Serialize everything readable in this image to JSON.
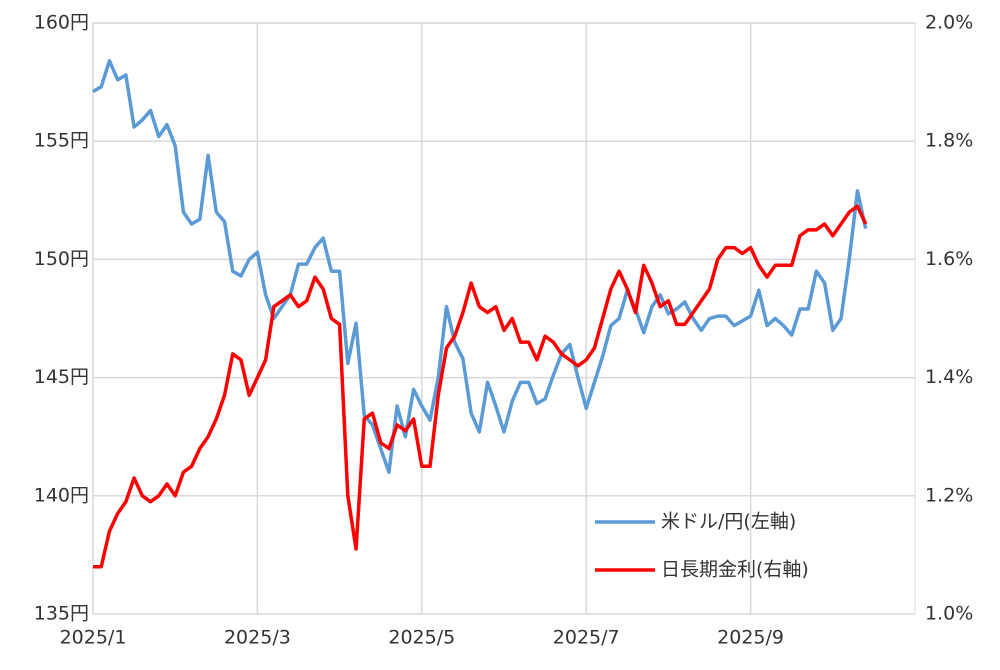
{
  "chart_data": {
    "type": "line",
    "x": [
      0,
      0.1,
      0.2,
      0.3,
      0.4,
      0.5,
      0.6,
      0.7,
      0.8,
      0.9,
      1,
      1.1,
      1.2,
      1.3,
      1.4,
      1.5,
      1.6,
      1.7,
      1.8,
      1.9,
      2,
      2.1,
      2.2,
      2.3,
      2.4,
      2.5,
      2.6,
      2.7,
      2.8,
      2.9,
      3,
      3.1,
      3.2,
      3.3,
      3.4,
      3.5,
      3.6,
      3.7,
      3.8,
      3.9,
      4,
      4.1,
      4.2,
      4.3,
      4.4,
      4.5,
      4.6,
      4.7,
      4.8,
      4.9,
      5,
      5.1,
      5.2,
      5.3,
      5.4,
      5.5,
      5.6,
      5.7,
      5.8,
      5.9,
      6,
      6.1,
      6.2,
      6.3,
      6.4,
      6.5,
      6.6,
      6.7,
      6.8,
      6.9,
      7,
      7.1,
      7.2,
      7.3,
      7.4,
      7.5,
      7.6,
      7.7,
      7.8,
      7.9,
      8,
      8.1,
      8.2,
      8.3,
      8.4,
      8.5,
      8.6,
      8.7,
      8.8,
      8.9,
      9,
      9.1,
      9.2,
      9.3,
      9.4
    ],
    "xlim": [
      0,
      10
    ],
    "xticks": [
      {
        "value": 0,
        "label": "2025/1"
      },
      {
        "value": 2,
        "label": "2025/3"
      },
      {
        "value": 4,
        "label": "2025/5"
      },
      {
        "value": 6,
        "label": "2025/7"
      },
      {
        "value": 8,
        "label": "2025/9"
      }
    ],
    "ylim": [
      135,
      160
    ],
    "yticks": [
      {
        "value": 135,
        "label": "135円"
      },
      {
        "value": 140,
        "label": "140円"
      },
      {
        "value": 145,
        "label": "145円"
      },
      {
        "value": 150,
        "label": "150円"
      },
      {
        "value": 155,
        "label": "155円"
      },
      {
        "value": 160,
        "label": "160円"
      }
    ],
    "y2lim": [
      1.0,
      2.0
    ],
    "y2ticks": [
      {
        "value": 1.0,
        "label": "1.0%"
      },
      {
        "value": 1.2,
        "label": "1.2%"
      },
      {
        "value": 1.4,
        "label": "1.4%"
      },
      {
        "value": 1.6,
        "label": "1.6%"
      },
      {
        "value": 1.8,
        "label": "1.8%"
      },
      {
        "value": 2.0,
        "label": "2.0%"
      }
    ],
    "grid": true,
    "legend": "lower right",
    "series": [
      {
        "name": "米ドル/円(左軸)",
        "color": "#5b9bd5",
        "values": [
          157.1,
          157.3,
          158.4,
          157.6,
          157.8,
          155.6,
          155.9,
          156.3,
          155.2,
          155.7,
          154.8,
          152.0,
          151.5,
          151.7,
          154.4,
          152.0,
          151.6,
          149.5,
          149.3,
          150.0,
          150.3,
          148.5,
          147.5,
          148.0,
          148.5,
          149.8,
          149.8,
          150.5,
          150.9,
          149.5,
          149.5,
          145.6,
          147.3,
          143.4,
          143.0,
          142.0,
          141.0,
          143.8,
          142.5,
          144.5,
          143.8,
          143.2,
          145.0,
          148.0,
          146.5,
          145.8,
          143.5,
          142.7,
          144.8,
          143.8,
          142.7,
          144.0,
          144.8,
          144.8,
          143.9,
          144.1,
          145.1,
          146.0,
          146.4,
          145.0,
          143.7,
          144.8,
          145.9,
          147.2,
          147.5,
          148.7,
          147.9,
          146.9,
          148.0,
          148.5,
          147.7,
          147.9,
          148.2,
          147.5,
          147.0,
          147.5,
          147.6,
          147.6,
          147.2,
          147.4,
          147.6,
          148.7,
          147.2,
          147.5,
          147.2,
          146.8,
          147.9,
          147.9,
          149.5,
          149.0,
          147.0,
          147.5,
          150.0,
          152.9,
          151.3
        ]
      },
      {
        "name": "日長期金利(右軸)",
        "color": "#ff0000",
        "axis": "y2",
        "values": [
          1.08,
          1.08,
          1.14,
          1.17,
          1.19,
          1.23,
          1.2,
          1.19,
          1.2,
          1.22,
          1.2,
          1.24,
          1.25,
          1.28,
          1.3,
          1.33,
          1.37,
          1.44,
          1.43,
          1.37,
          1.4,
          1.43,
          1.52,
          1.53,
          1.54,
          1.52,
          1.53,
          1.57,
          1.55,
          1.5,
          1.49,
          1.2,
          1.11,
          1.33,
          1.34,
          1.29,
          1.28,
          1.32,
          1.31,
          1.33,
          1.25,
          1.25,
          1.37,
          1.45,
          1.47,
          1.51,
          1.56,
          1.52,
          1.51,
          1.52,
          1.48,
          1.5,
          1.46,
          1.46,
          1.43,
          1.47,
          1.46,
          1.44,
          1.43,
          1.42,
          1.43,
          1.45,
          1.5,
          1.55,
          1.58,
          1.55,
          1.51,
          1.59,
          1.56,
          1.52,
          1.53,
          1.49,
          1.49,
          1.51,
          1.53,
          1.55,
          1.6,
          1.62,
          1.62,
          1.61,
          1.62,
          1.59,
          1.57,
          1.59,
          1.59,
          1.59,
          1.64,
          1.65,
          1.65,
          1.66,
          1.64,
          1.66,
          1.68,
          1.69,
          1.66
        ]
      }
    ]
  }
}
